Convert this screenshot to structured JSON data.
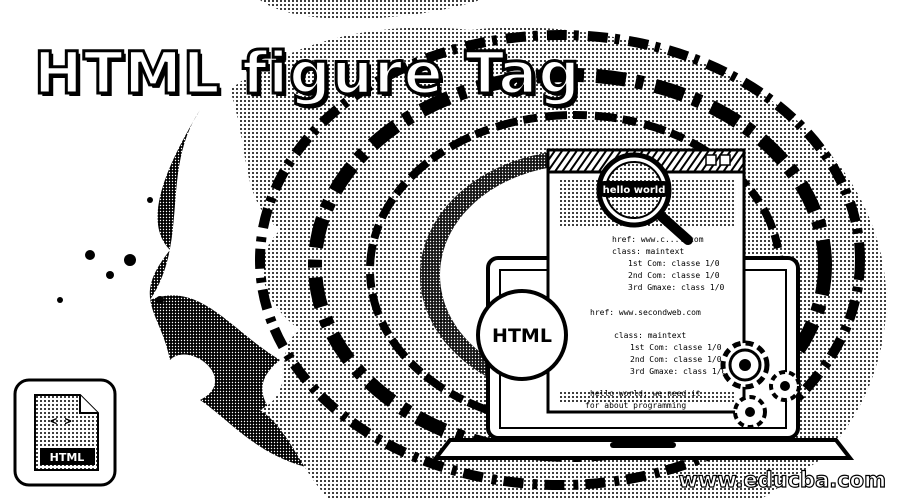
{
  "title": "HTML figure Tag",
  "footer": {
    "url": "www.educba.com"
  },
  "illustration": {
    "search_text": "hello world",
    "badge_text": "HTML",
    "file_icon_label": "HTML",
    "code_lines": [
      "href: www.c...l.com",
      "class: maintext",
      "1st Com: classe 1/0",
      "2nd Com: classe 1/0",
      "3rd Gmaxe: class 1/0",
      "href: www.secondweb.com",
      "class: maintext",
      "1st Com: classe 1/0",
      "2nd Com: classe 1/0",
      "3rd Gmaxe: class 1/0",
      "hello world: we need it",
      "for about programming"
    ],
    "icons": [
      "magnifier-icon",
      "gear-icon",
      "file-icon",
      "laptop-icon",
      "browser-window-icon"
    ]
  },
  "colors": {
    "ink": "#000000",
    "paper": "#ffffff"
  }
}
